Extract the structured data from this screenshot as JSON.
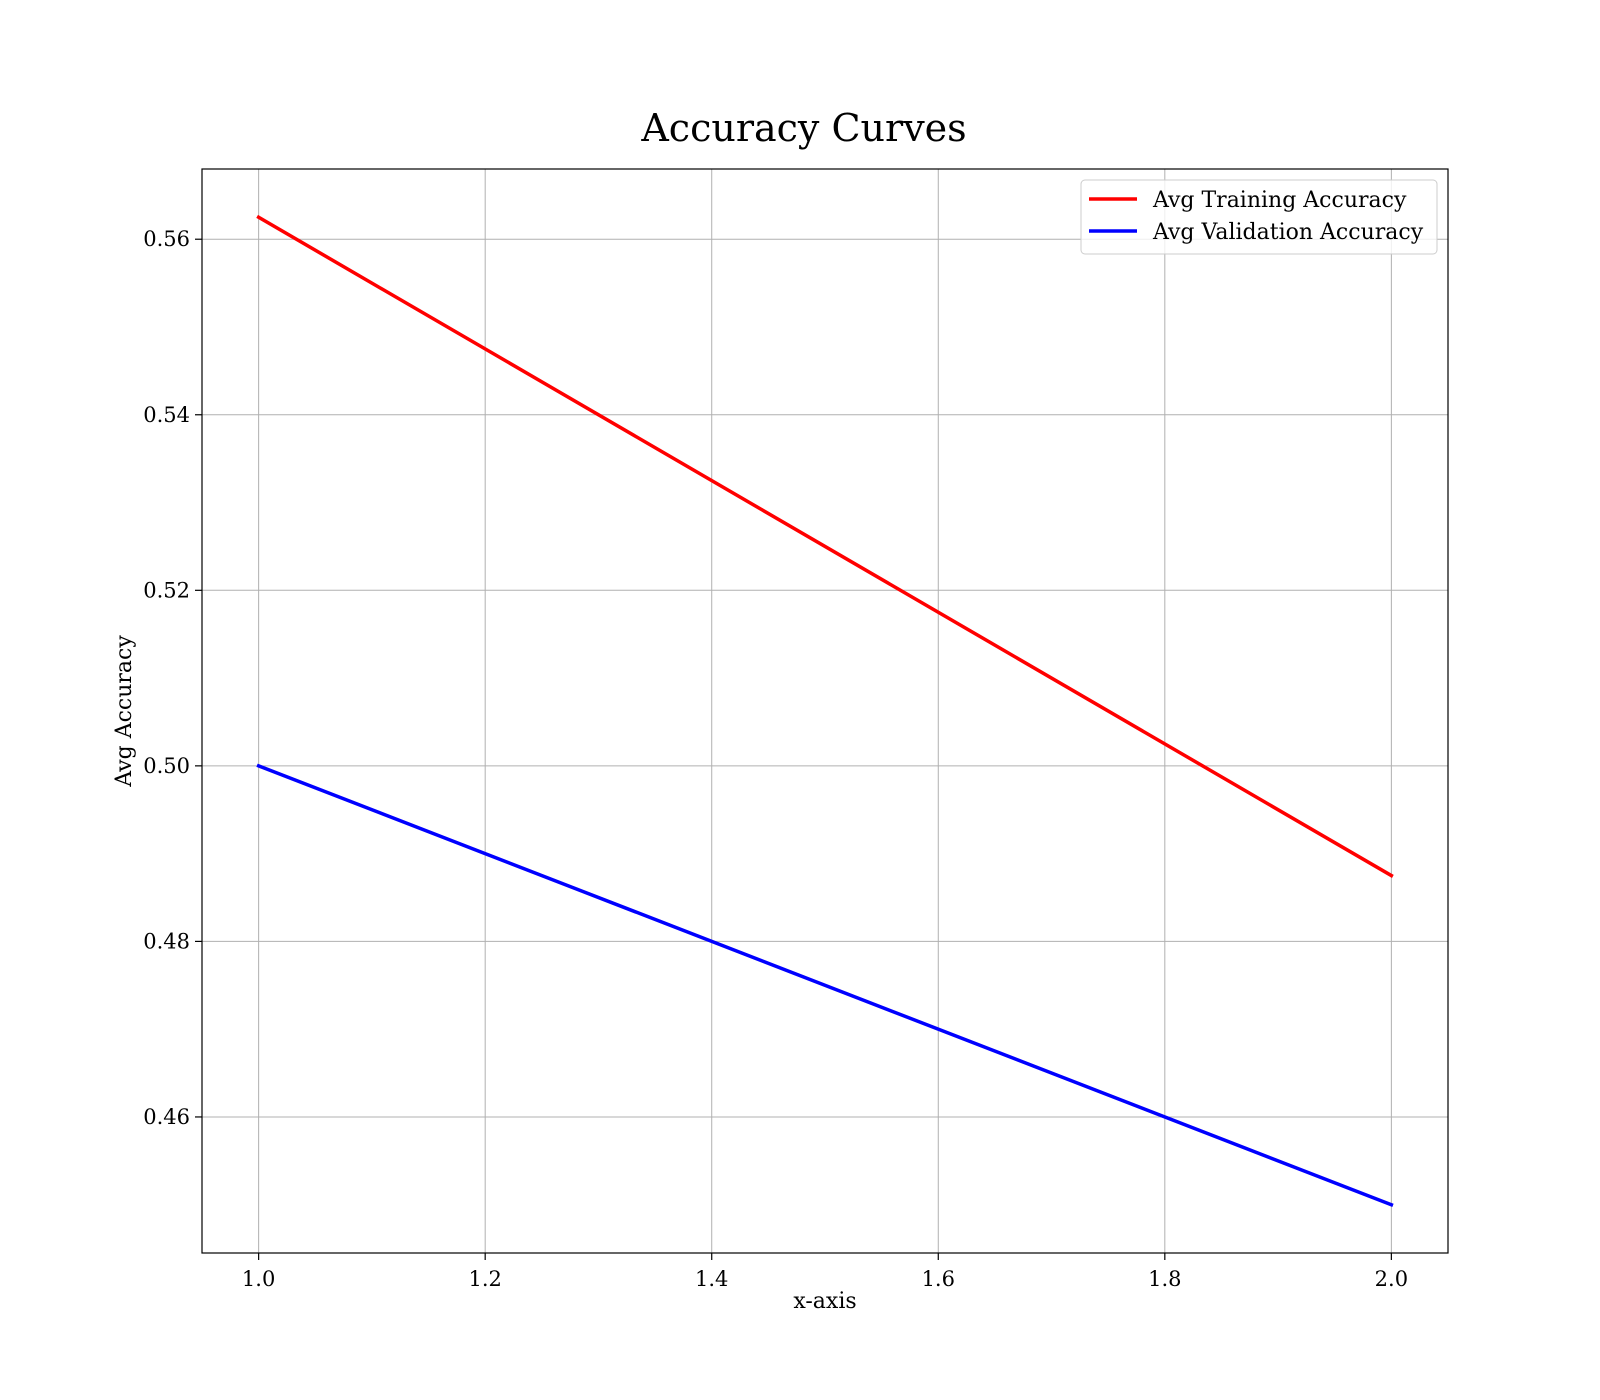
{
  "chart_data": {
    "type": "line",
    "title": "Accuracy Curves",
    "xlabel": "x-axis",
    "ylabel": "Avg Accuracy",
    "x": [
      1.0,
      2.0
    ],
    "xlim": [
      0.95,
      2.05
    ],
    "ylim": [
      0.4445,
      0.568
    ],
    "xticks": [
      1.0,
      1.2,
      1.4,
      1.6,
      1.8,
      2.0
    ],
    "xtick_labels": [
      "1.0",
      "1.2",
      "1.4",
      "1.6",
      "1.8",
      "2.0"
    ],
    "yticks": [
      0.46,
      0.48,
      0.5,
      0.52,
      0.54,
      0.56
    ],
    "ytick_labels": [
      "0.46",
      "0.48",
      "0.50",
      "0.52",
      "0.54",
      "0.56"
    ],
    "grid": true,
    "legend_position": "top-right",
    "series": [
      {
        "name": "Avg Training Accuracy",
        "color": "#ff0000",
        "values": [
          0.5625,
          0.4875
        ]
      },
      {
        "name": "Avg Validation Accuracy",
        "color": "#0000ff",
        "values": [
          0.5,
          0.45
        ]
      }
    ]
  }
}
